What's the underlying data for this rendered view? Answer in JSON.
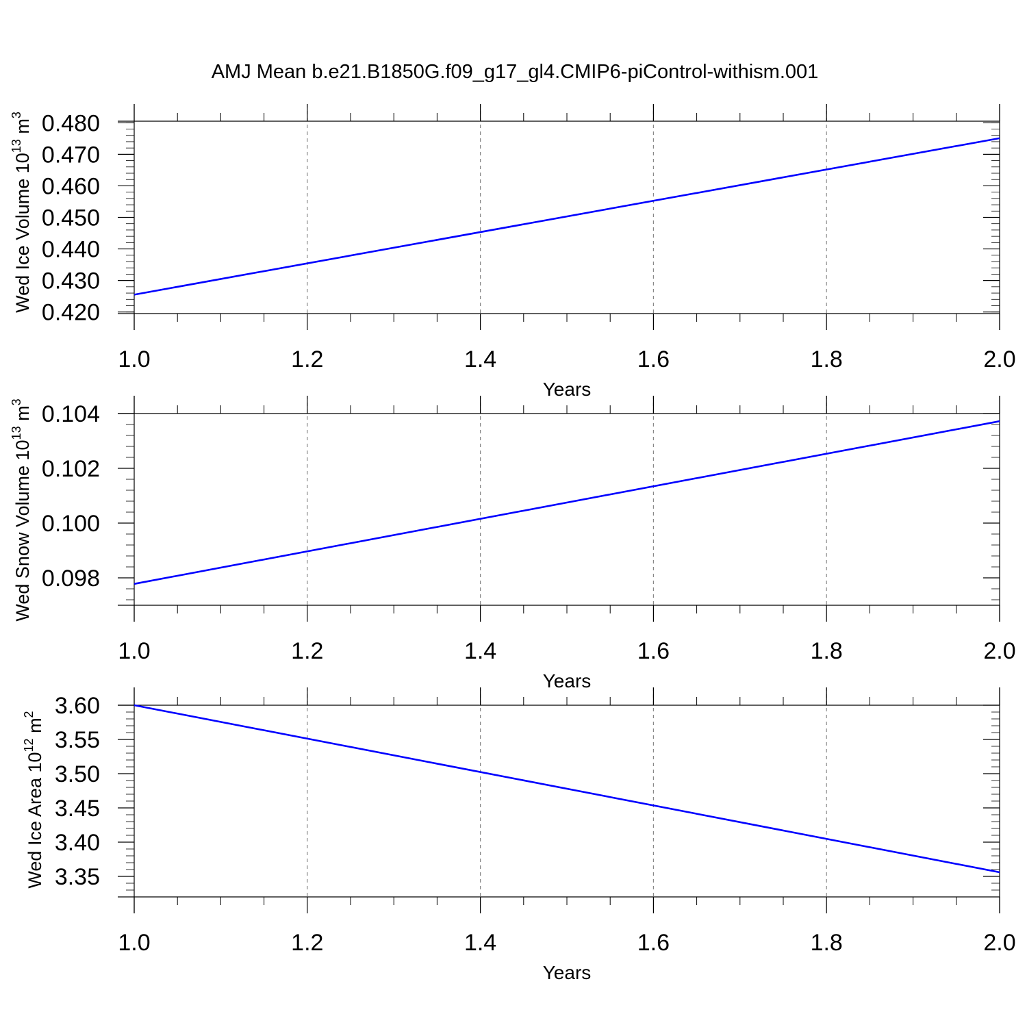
{
  "title": "AMJ Mean b.e21.B1850G.f09_g17_gl4.CMIP6-piControl-withism.001",
  "chart_data": [
    {
      "type": "line",
      "ylabel": {
        "text": "Wed Ice Volume 10",
        "sup": "13",
        "mid": " m",
        "sup2": "3"
      },
      "xlabel": "Years",
      "xlim": [
        1.0,
        2.0
      ],
      "ylim": [
        0.4195,
        0.4805
      ],
      "xticks": [
        1.0,
        1.2,
        1.4,
        1.6,
        1.8,
        2.0
      ],
      "xtick_labels": [
        "1.0",
        "1.2",
        "1.4",
        "1.6",
        "1.8",
        "2.0"
      ],
      "yticks": [
        0.42,
        0.43,
        0.44,
        0.45,
        0.46,
        0.47,
        0.48
      ],
      "ytick_labels": [
        "0.420",
        "0.430",
        "0.440",
        "0.450",
        "0.460",
        "0.470",
        "0.480"
      ],
      "yminor_step": 0.002,
      "grid": "x-dashed",
      "series": [
        {
          "x": [
            1.0,
            2.0
          ],
          "y": [
            0.4255,
            0.4751
          ],
          "color": "#0000ff"
        }
      ]
    },
    {
      "type": "line",
      "ylabel": {
        "text": "Wed Snow Volume 10",
        "sup": "13",
        "mid": " m",
        "sup2": "3"
      },
      "xlabel": "Years",
      "xlim": [
        1.0,
        2.0
      ],
      "ylim": [
        0.097,
        0.104
      ],
      "xticks": [
        1.0,
        1.2,
        1.4,
        1.6,
        1.8,
        2.0
      ],
      "xtick_labels": [
        "1.0",
        "1.2",
        "1.4",
        "1.6",
        "1.8",
        "2.0"
      ],
      "yticks": [
        0.098,
        0.1,
        0.102,
        0.104
      ],
      "ytick_labels": [
        "0.098",
        "0.100",
        "0.102",
        "0.104"
      ],
      "yminor_step": 0.0004,
      "grid": "x-dashed",
      "series": [
        {
          "x": [
            1.0,
            2.0
          ],
          "y": [
            0.09778,
            0.10372
          ],
          "color": "#0000ff"
        }
      ]
    },
    {
      "type": "line",
      "ylabel": {
        "text": "Wed Ice Area 10",
        "sup": "12",
        "mid": " m",
        "sup2": "2"
      },
      "xlabel": "Years",
      "xlim": [
        1.0,
        2.0
      ],
      "ylim": [
        3.32,
        3.6
      ],
      "xticks": [
        1.0,
        1.2,
        1.4,
        1.6,
        1.8,
        2.0
      ],
      "xtick_labels": [
        "1.0",
        "1.2",
        "1.4",
        "1.6",
        "1.8",
        "2.0"
      ],
      "yticks": [
        3.35,
        3.4,
        3.45,
        3.5,
        3.55,
        3.6
      ],
      "ytick_labels": [
        "3.35",
        "3.40",
        "3.45",
        "3.50",
        "3.55",
        "3.60"
      ],
      "yminor_step": 0.01,
      "grid": "x-dashed",
      "series": [
        {
          "x": [
            1.0,
            2.0
          ],
          "y": [
            3.6,
            3.356
          ],
          "color": "#0000ff"
        }
      ]
    }
  ]
}
